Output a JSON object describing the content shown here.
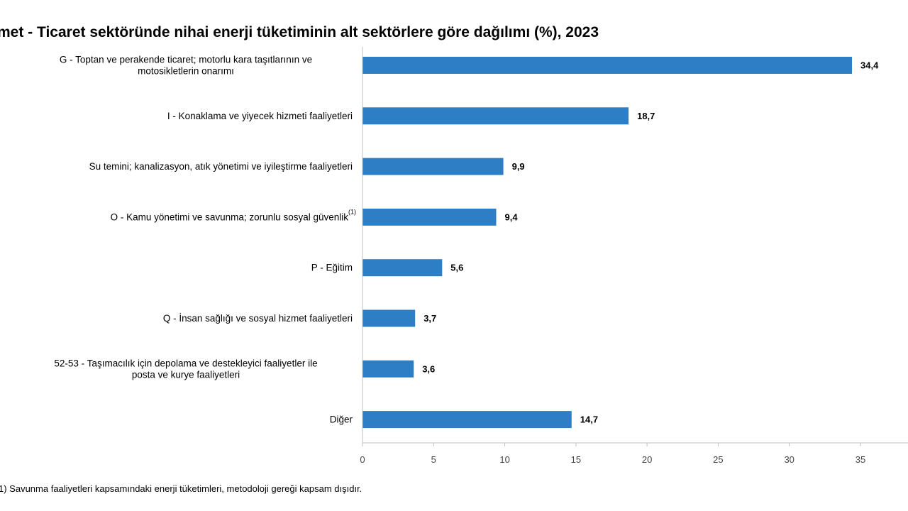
{
  "chart_data": {
    "type": "bar",
    "orientation": "horizontal",
    "title": "met - Ticaret sektöründe nihai enerji tüketiminin alt sektörlere göre dağılımı (%), 2023",
    "categories": [
      [
        "G - Toptan ve perakende ticaret; motorlu kara taşıtlarının ve",
        "motosikletlerin onarımı"
      ],
      [
        "I - Konaklama ve yiyecek hizmeti faaliyetleri"
      ],
      [
        "Su temini; kanalizasyon, atık yönetimi ve iyileştirme faaliyetleri"
      ],
      [
        "O - Kamu yönetimi ve savunma; zorunlu sosyal güvenlik"
      ],
      [
        "P - Eğitim"
      ],
      [
        "Q - İnsan sağlığı ve sosyal hizmet faaliyetleri"
      ],
      [
        "52-53 - Taşımacılık için depolama ve destekleyici faaliyetler ile",
        "posta ve kurye faaliyetleri"
      ],
      [
        "Diğer"
      ]
    ],
    "category_superscripts": [
      "",
      "",
      "",
      "(1)",
      "",
      "",
      "",
      ""
    ],
    "values": [
      34.4,
      18.7,
      9.9,
      9.4,
      5.6,
      3.7,
      3.6,
      14.7
    ],
    "value_labels": [
      "34,4",
      "18,7",
      "9,9",
      "9,4",
      "5,6",
      "3,7",
      "3,6",
      "14,7"
    ],
    "xlim": [
      0,
      35
    ],
    "xticks": [
      0,
      5,
      10,
      15,
      20,
      25,
      30,
      35
    ],
    "bar_color": "#2e7ec6",
    "axis_color": "#bfbfbf",
    "grid": false,
    "legend": "none",
    "footnote": "1) Savunma faaliyetleri kapsamındaki enerji tüketimleri, metodoloji gereği kapsam dışıdır."
  }
}
